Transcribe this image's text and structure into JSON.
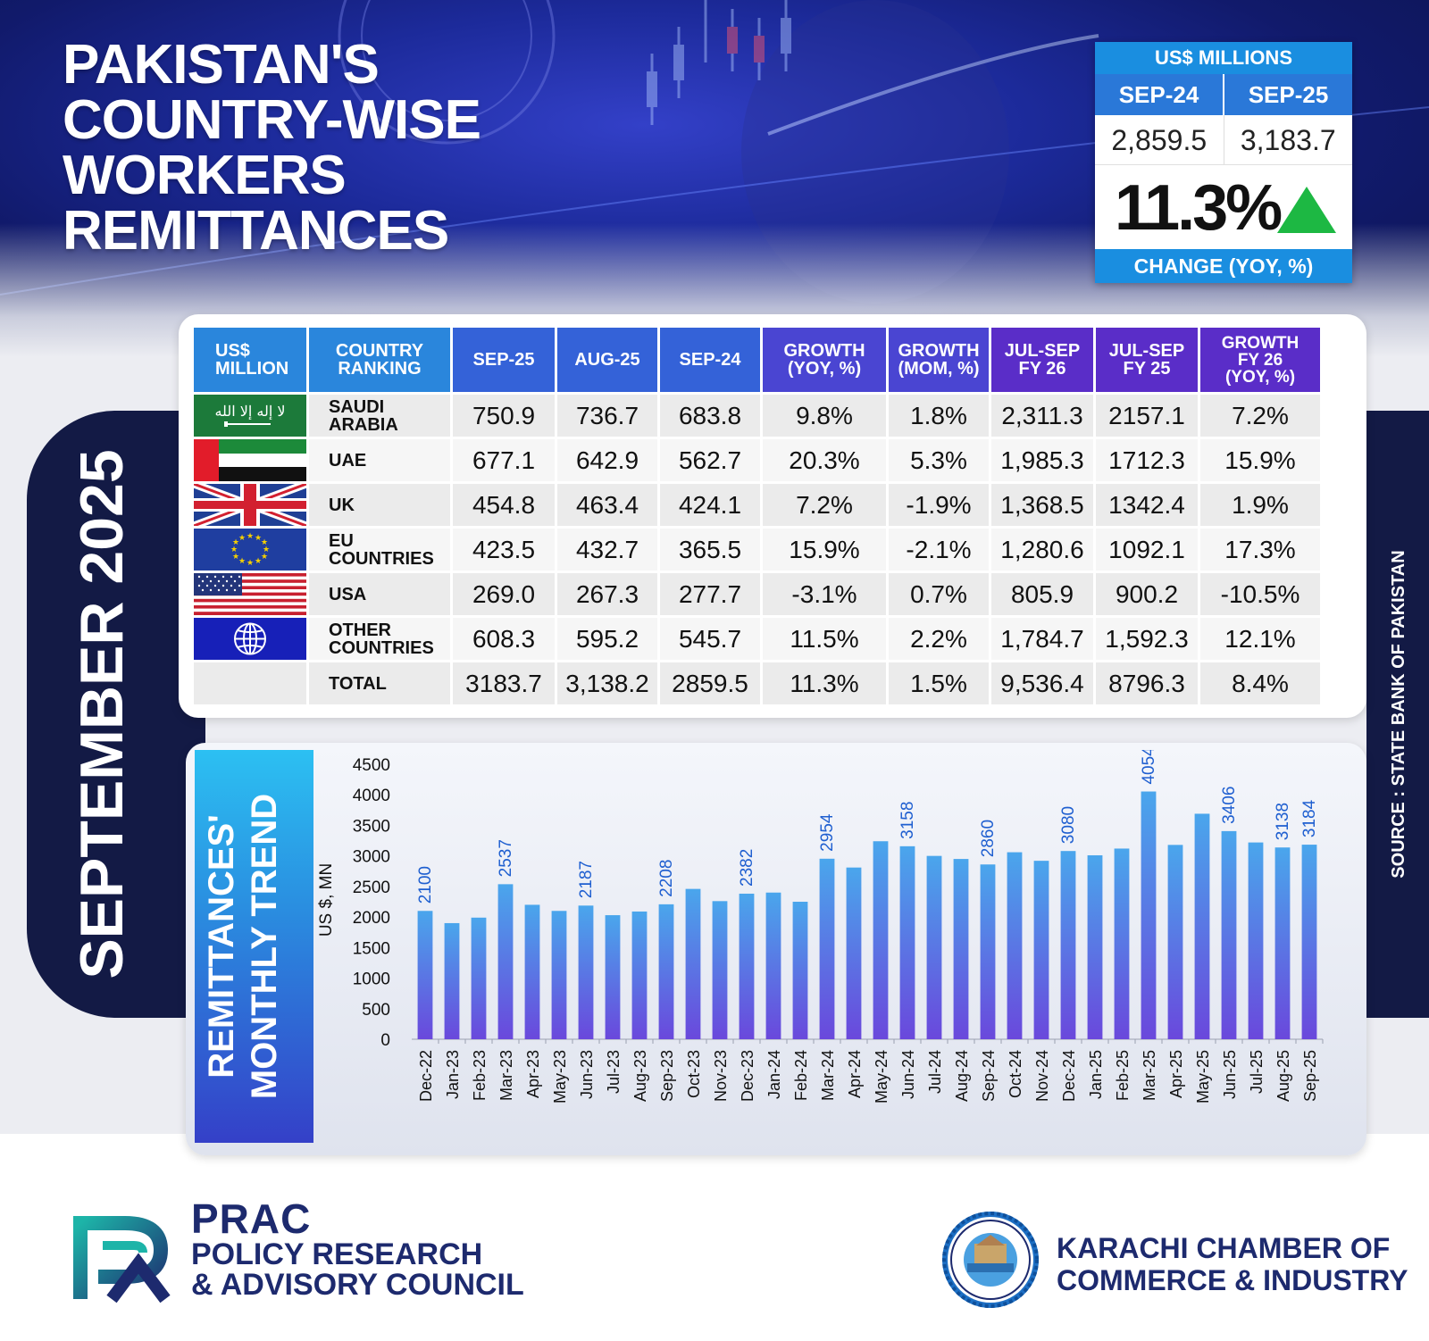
{
  "header": {
    "title_lines": [
      "PAKISTAN'S",
      "COUNTRY-WISE",
      "WORKERS",
      "REMITTANCES"
    ]
  },
  "summary": {
    "unit": "US$ MILLIONS",
    "col1": "SEP-24",
    "col2": "SEP-25",
    "val1": "2,859.5",
    "val2": "3,183.7",
    "change": "11.3%",
    "change_label": "CHANGE (YOY, %)",
    "arrow_color": "#1db843"
  },
  "side": {
    "month": "SEPTEMBER 2025",
    "source": "SOURCE : STATE BANK OF PAKISTAN"
  },
  "table": {
    "headers": [
      "US$ MILLION",
      "COUNTRY RANKING",
      "SEP-25",
      "AUG-25",
      "SEP-24",
      "GROWTH (YOY, %)",
      "GROWTH (MOM, %)",
      "JUL-SEP FY 26",
      "JUL-SEP FY 25",
      "GROWTH FY 26 (YOY, %)"
    ],
    "header_lines": [
      [
        "US$",
        "MILLION"
      ],
      [
        "COUNTRY",
        "RANKING"
      ],
      [
        "SEP-25"
      ],
      [
        "AUG-25"
      ],
      [
        "SEP-24"
      ],
      [
        "GROWTH",
        "(YOY, %)"
      ],
      [
        "GROWTH",
        "(MOM, %)"
      ],
      [
        "JUL-SEP",
        "FY 26"
      ],
      [
        "JUL-SEP",
        "FY 25"
      ],
      [
        "GROWTH",
        "FY 26",
        "(YOY, %)"
      ]
    ],
    "rows": [
      {
        "flag": "saudi-flag-icon",
        "country": [
          "SAUDI",
          "ARABIA"
        ],
        "values": [
          "750.9",
          "736.7",
          "683.8",
          "9.8%",
          "1.8%",
          "2,311.3",
          "2157.1",
          "7.2%"
        ]
      },
      {
        "flag": "uae-flag-icon",
        "country": [
          "UAE"
        ],
        "values": [
          "677.1",
          "642.9",
          "562.7",
          "20.3%",
          "5.3%",
          "1,985.3",
          "1712.3",
          "15.9%"
        ]
      },
      {
        "flag": "uk-flag-icon",
        "country": [
          "UK"
        ],
        "values": [
          "454.8",
          "463.4",
          "424.1",
          "7.2%",
          "-1.9%",
          "1,368.5",
          "1342.4",
          "1.9%"
        ]
      },
      {
        "flag": "eu-flag-icon",
        "country": [
          "EU",
          "COUNTRIES"
        ],
        "values": [
          "423.5",
          "432.7",
          "365.5",
          "15.9%",
          "-2.1%",
          "1,280.6",
          "1092.1",
          "17.3%"
        ]
      },
      {
        "flag": "usa-flag-icon",
        "country": [
          "USA"
        ],
        "values": [
          "269.0",
          "267.3",
          "277.7",
          "-3.1%",
          "0.7%",
          "805.9",
          "900.2",
          "-10.5%"
        ]
      },
      {
        "flag": "globe-icon",
        "country": [
          "OTHER",
          "COUNTRIES"
        ],
        "values": [
          "608.3",
          "595.2",
          "545.7",
          "11.5%",
          "2.2%",
          "1,784.7",
          "1,592.3",
          "12.1%"
        ]
      },
      {
        "flag": "",
        "country": [
          "TOTAL"
        ],
        "values": [
          "3183.7",
          "3,138.2",
          "2859.5",
          "11.3%",
          "1.5%",
          "9,536.4",
          "8796.3",
          "8.4%"
        ]
      }
    ]
  },
  "chart_data": {
    "type": "bar",
    "title": "REMITTANCES' MONTHLY TREND",
    "title_lines": [
      "REMITTANCES'",
      "MONTHLY TREND"
    ],
    "xlabel": "",
    "ylabel": "US $, MN",
    "ylim": [
      0,
      4500
    ],
    "yticks": [
      0,
      500,
      1000,
      1500,
      2000,
      2500,
      3000,
      3500,
      4000,
      4500
    ],
    "categories": [
      "Dec-22",
      "Jan-23",
      "Feb-23",
      "Mar-23",
      "Apr-23",
      "May-23",
      "Jun-23",
      "Jul-23",
      "Aug-23",
      "Sep-23",
      "Oct-23",
      "Nov-23",
      "Dec-23",
      "Jan-24",
      "Feb-24",
      "Mar-24",
      "Apr-24",
      "May-24",
      "Jun-24",
      "Jul-24",
      "Aug-24",
      "Sep-24",
      "Oct-24",
      "Nov-24",
      "Dec-24",
      "Jan-25",
      "Feb-25",
      "Mar-25",
      "Apr-25",
      "May-25",
      "Jun-25",
      "Jul-25",
      "Aug-25",
      "Sep-25"
    ],
    "values": [
      2100,
      1900,
      1990,
      2537,
      2200,
      2100,
      2187,
      2030,
      2090,
      2208,
      2460,
      2260,
      2382,
      2400,
      2250,
      2954,
      2810,
      3240,
      3158,
      3000,
      2950,
      2860,
      3060,
      2920,
      3080,
      3010,
      3120,
      4054,
      3180,
      3690,
      3406,
      3220,
      3138,
      3184
    ],
    "labels": [
      "2100",
      "",
      "",
      "2537",
      "",
      "",
      "2187",
      "",
      "",
      "2208",
      "",
      "",
      "2382",
      "",
      "",
      "2954",
      "",
      "",
      "3158",
      "",
      "",
      "2860",
      "",
      "",
      "3080",
      "",
      "",
      "4054",
      "",
      "",
      "3406",
      "",
      "3138",
      "3184"
    ],
    "grid": false,
    "legend": "none",
    "bar_color_top": "#4aa6ec",
    "bar_color_bottom": "#6a48dc",
    "label_color": "#1f5fd0"
  },
  "footer": {
    "prac_name": "PRAC",
    "prac_sub1": "POLICY RESEARCH",
    "prac_sub2": "& ADVISORY COUNCIL",
    "kcci_line1": "KARACHI CHAMBER OF",
    "kcci_line2": "COMMERCE & INDUSTRY",
    "prac_color": "#1d2a6e"
  }
}
